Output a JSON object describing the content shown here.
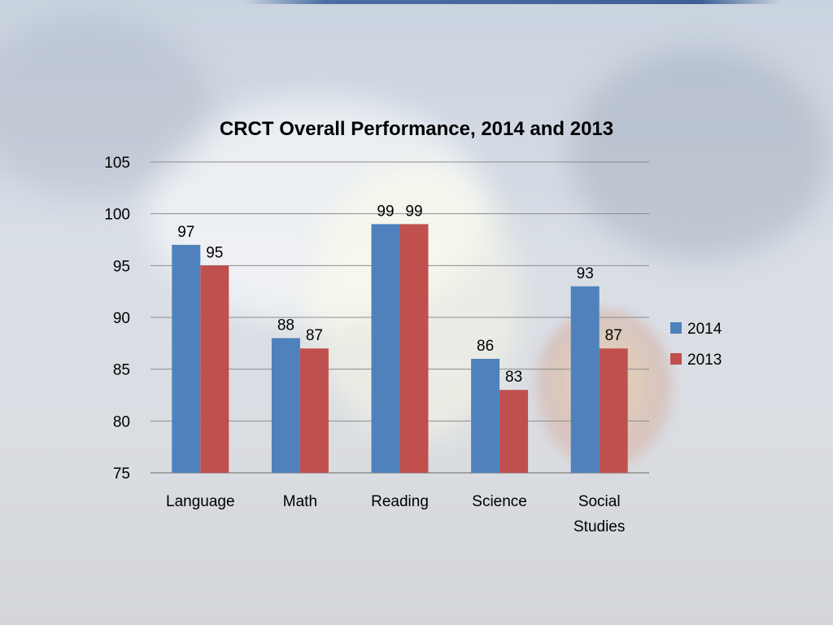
{
  "colors": {
    "series_2014": "#4f81bd",
    "series_2013": "#c0504d",
    "gridline": "#8c8c8c"
  },
  "chart_data": {
    "type": "bar",
    "title": "CRCT Overall Performance, 2014 and 2013",
    "xlabel": "",
    "ylabel": "",
    "categories": [
      "Language",
      "Math",
      "Reading",
      "Science",
      "Social Studies"
    ],
    "series": [
      {
        "name": "2014",
        "values": [
          97,
          88,
          99,
          86,
          93
        ]
      },
      {
        "name": "2013",
        "values": [
          95,
          87,
          99,
          83,
          87
        ]
      }
    ],
    "ylim": [
      75,
      105
    ],
    "yticks": [
      75,
      80,
      85,
      90,
      95,
      100,
      105
    ],
    "grid": true,
    "legend": "right",
    "data_labels": true
  }
}
